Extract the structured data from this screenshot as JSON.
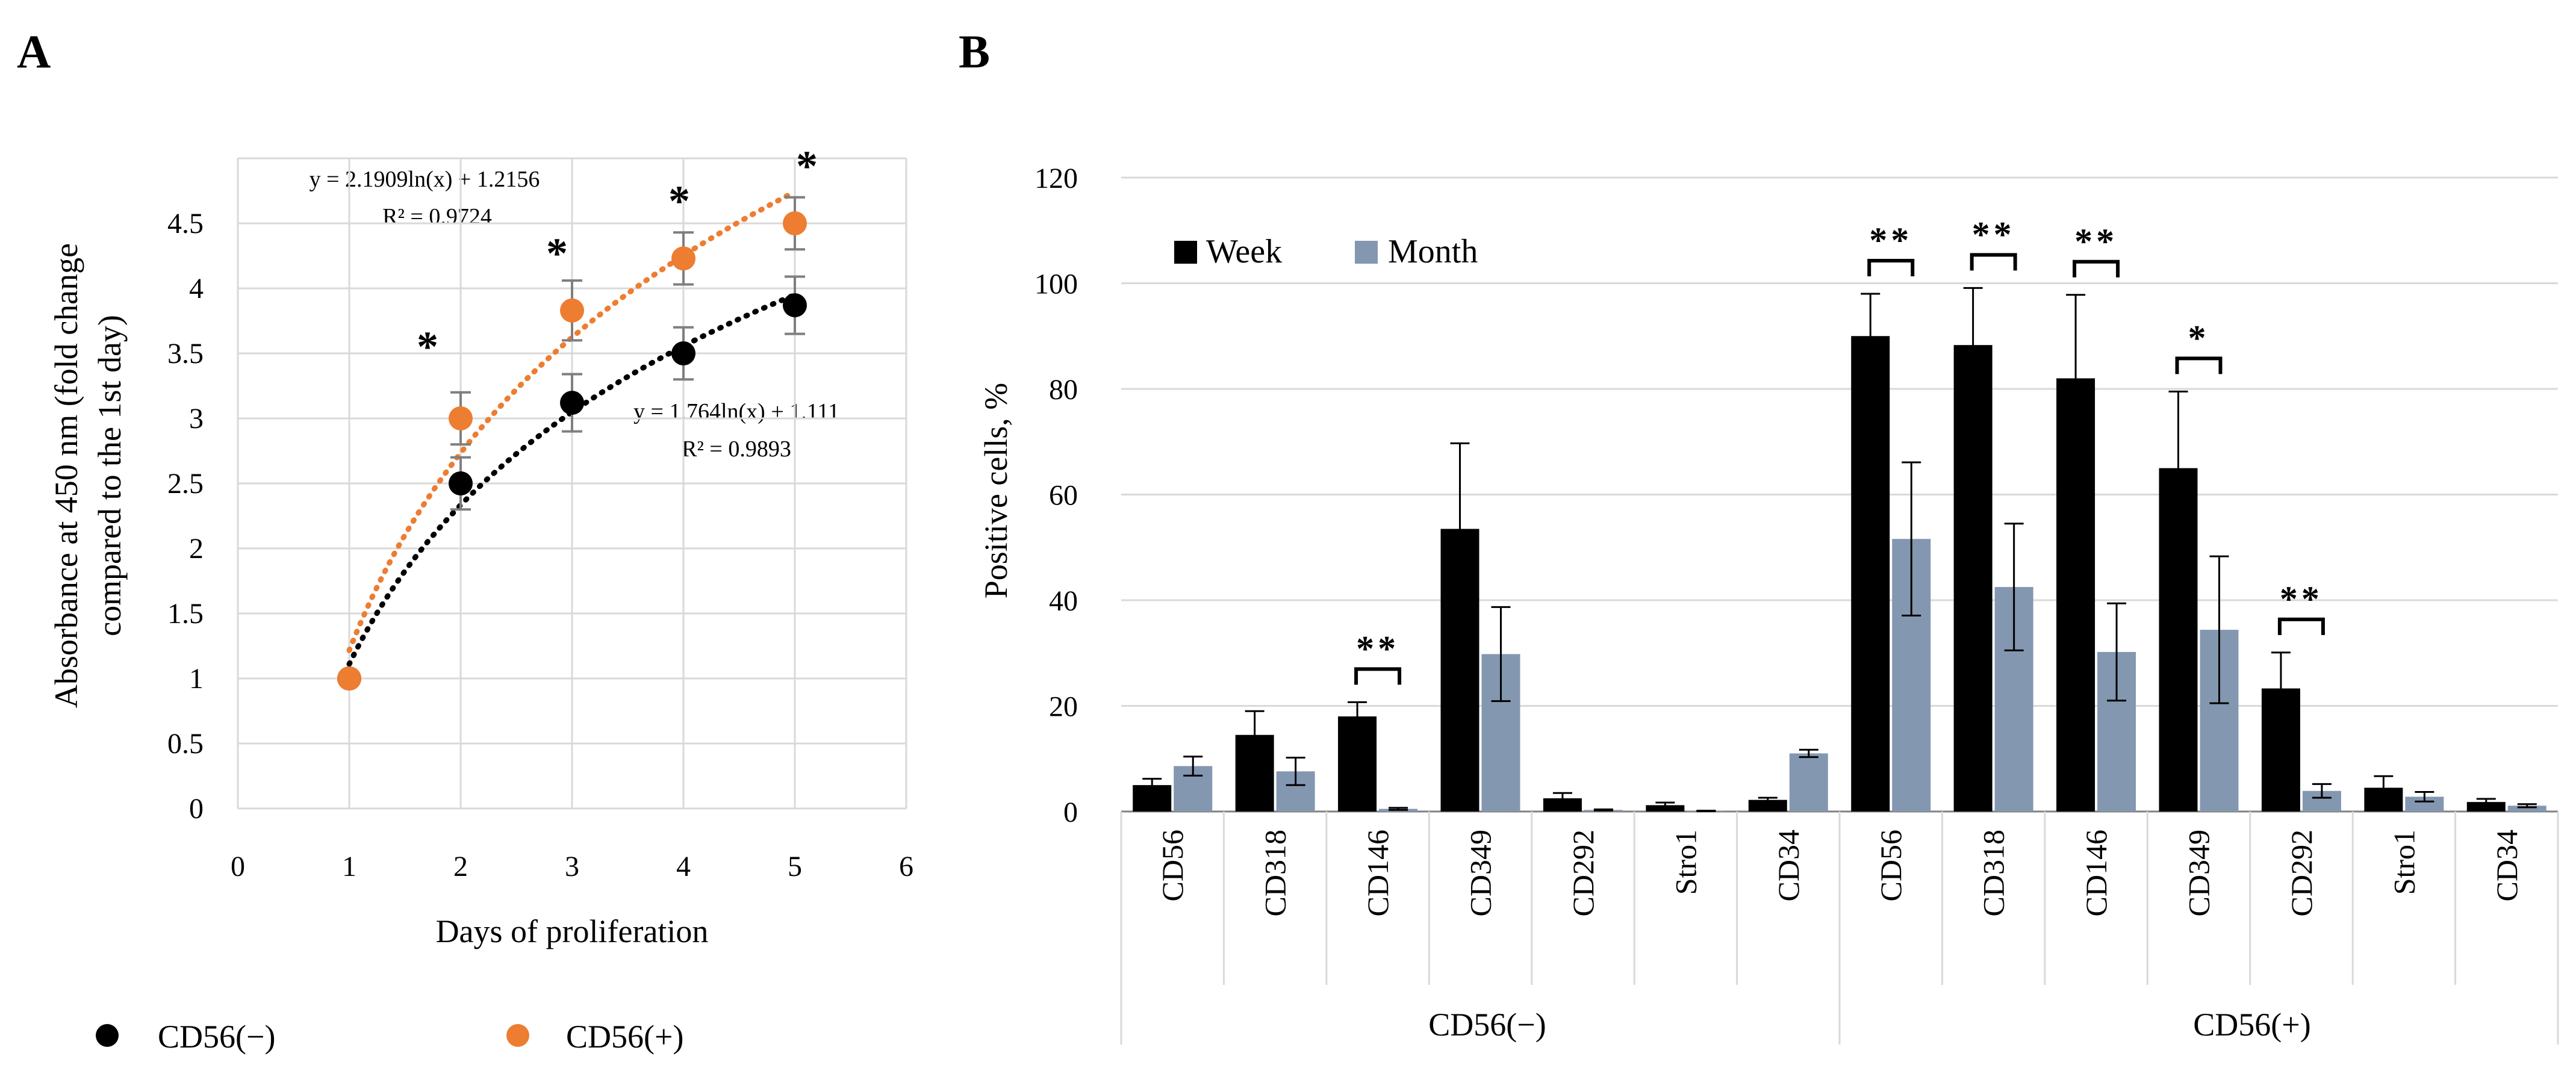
{
  "panel_a_label": "A",
  "panel_b_label": "B",
  "colors": {
    "cd56_neg": "#000000",
    "cd56_pos": "#ED7D31",
    "week": "#000000",
    "month": "#8497B0",
    "grid": "#D9D9D9",
    "axis": "#808080"
  },
  "chart_data": [
    {
      "id": "A",
      "type": "scatter",
      "title": "",
      "xlabel": "Days of proliferation",
      "ylabel_line1": "Absorbance at 450 nm (fold change",
      "ylabel_line2": "compared to the 1st day)",
      "xlim": [
        0,
        6
      ],
      "ylim": [
        0,
        5
      ],
      "xticks": [
        "0",
        "1",
        "2",
        "3",
        "4",
        "5",
        "6"
      ],
      "yticks": [
        "0",
        "0.5",
        "1",
        "1.5",
        "2",
        "2.5",
        "3",
        "3.5",
        "4",
        "4.5"
      ],
      "grid": true,
      "legend_position": "bottom",
      "series": [
        {
          "name": "CD56(−)",
          "color": "#000000",
          "x": [
            1,
            2,
            3,
            4,
            5
          ],
          "y": [
            1.0,
            2.5,
            3.12,
            3.5,
            3.87
          ],
          "error": [
            0.0,
            0.2,
            0.22,
            0.2,
            0.22
          ],
          "trend": {
            "a": 1.764,
            "b": 1.111
          },
          "equation": "y = 1.764ln(x) + 1.111",
          "r2": "R² = 0.9893"
        },
        {
          "name": "CD56(+)",
          "color": "#ED7D31",
          "x": [
            1,
            2,
            3,
            4,
            5
          ],
          "y": [
            1.0,
            3.0,
            3.83,
            4.23,
            4.5
          ],
          "error": [
            0.0,
            0.2,
            0.23,
            0.2,
            0.2
          ],
          "trend": {
            "a": 2.1909,
            "b": 1.2156
          },
          "equation": "y = 2.1909ln(x) + 1.2156",
          "r2": "R² = 0.9724"
        }
      ],
      "significance": [
        {
          "x": 2,
          "label": "*"
        },
        {
          "x": 3,
          "label": "*"
        },
        {
          "x": 4,
          "label": "*"
        },
        {
          "x": 5,
          "label": "*"
        }
      ]
    },
    {
      "id": "B",
      "type": "bar",
      "title": "",
      "ylabel": "Positive cells, %",
      "ylim": [
        0,
        120
      ],
      "yticks": [
        "0",
        "20",
        "40",
        "60",
        "80",
        "100",
        "120"
      ],
      "grid": true,
      "legend_position": "top-left",
      "categories": [
        "CD56",
        "CD318",
        "CD146",
        "CD349",
        "CD292",
        "Stro1",
        "CD34",
        "CD56",
        "CD318",
        "CD146",
        "CD349",
        "CD292",
        "Stro1",
        "CD34"
      ],
      "groups": [
        {
          "label": "CD56(−)",
          "start": 0,
          "end": 6
        },
        {
          "label": "CD56(+)",
          "start": 7,
          "end": 13
        }
      ],
      "series": [
        {
          "name": "Week",
          "color": "#000000",
          "values": [
            5,
            14.5,
            18,
            53.5,
            2.5,
            1.2,
            2.2,
            90,
            88.3,
            82,
            65,
            23.3,
            4.5,
            1.8
          ],
          "error": [
            1.2,
            4.5,
            2.7,
            16.2,
            1.0,
            0.5,
            0.4,
            8.0,
            10.8,
            15.8,
            14.5,
            6.8,
            2.2,
            0.6
          ]
        },
        {
          "name": "Month",
          "color": "#8497B0",
          "values": [
            8.6,
            7.6,
            0.5,
            29.8,
            0.3,
            0.1,
            11,
            51.6,
            42.5,
            30.2,
            34.4,
            3.9,
            2.8,
            1.1
          ],
          "error": [
            1.8,
            2.6,
            0.2,
            8.9,
            0.1,
            0.05,
            0.7,
            14.5,
            12.0,
            9.2,
            13.9,
            1.3,
            0.9,
            0.3
          ]
        }
      ],
      "significance": [
        {
          "category": 2,
          "label": "**"
        },
        {
          "category": 7,
          "label": "**"
        },
        {
          "category": 8,
          "label": "**"
        },
        {
          "category": 9,
          "label": "**"
        },
        {
          "category": 10,
          "label": "*"
        },
        {
          "category": 11,
          "label": "**"
        }
      ]
    }
  ]
}
